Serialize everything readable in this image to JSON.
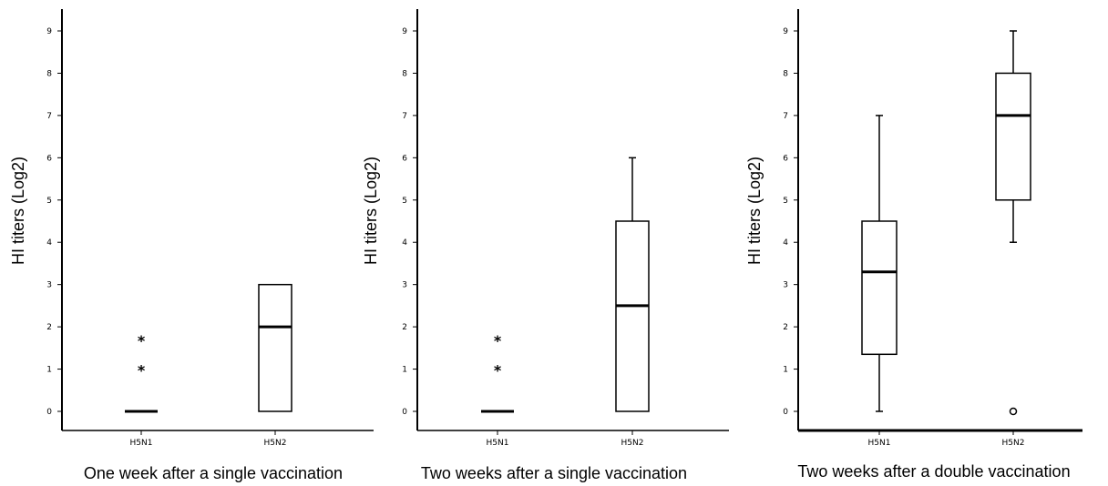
{
  "chart_data": [
    {
      "type": "box",
      "xlabel": "One week after a single vaccination",
      "ylabel": "HI titers (Log2)",
      "ylim": [
        0,
        9
      ],
      "yticks": [
        0,
        1,
        2,
        3,
        4,
        5,
        6,
        7,
        8,
        9
      ],
      "categories": [
        "H5N1",
        "H5N2"
      ],
      "boxes": [
        {
          "category": "H5N1",
          "min": 0,
          "q1": 0,
          "median": 0,
          "q3": 0,
          "max": 0,
          "outliers": [],
          "extremes": [
            1,
            1.7
          ]
        },
        {
          "category": "H5N2",
          "min": 0,
          "q1": 0,
          "median": 2,
          "q3": 3,
          "max": 3,
          "outliers": [],
          "extremes": []
        }
      ],
      "grid": false
    },
    {
      "type": "box",
      "xlabel": "Two weeks after a single vaccination",
      "ylabel": "HI titers (Log2)",
      "ylim": [
        0,
        9
      ],
      "yticks": [
        0,
        1,
        2,
        3,
        4,
        5,
        6,
        7,
        8,
        9
      ],
      "categories": [
        "H5N1",
        "H5N2"
      ],
      "boxes": [
        {
          "category": "H5N1",
          "min": 0,
          "q1": 0,
          "median": 0,
          "q3": 0,
          "max": 0,
          "outliers": [],
          "extremes": [
            1,
            1.7
          ]
        },
        {
          "category": "H5N2",
          "min": 0,
          "q1": 0,
          "median": 2.5,
          "q3": 4.5,
          "max": 6,
          "outliers": [],
          "extremes": []
        }
      ],
      "grid": false
    },
    {
      "type": "box",
      "xlabel": "Two weeks after a double vaccination",
      "ylabel": "HI titers (Log2)",
      "ylim": [
        0,
        9
      ],
      "yticks": [
        0,
        1,
        2,
        3,
        4,
        5,
        6,
        7,
        8,
        9
      ],
      "categories": [
        "H5N1",
        "H5N2"
      ],
      "boxes": [
        {
          "category": "H5N1",
          "min": 0,
          "q1": 1.35,
          "median": 3.3,
          "q3": 4.5,
          "max": 7,
          "outliers": [],
          "extremes": []
        },
        {
          "category": "H5N2",
          "min": 4,
          "q1": 5,
          "median": 7,
          "q3": 8,
          "max": 9,
          "outliers": [
            0
          ],
          "extremes": []
        }
      ],
      "grid": false
    }
  ]
}
